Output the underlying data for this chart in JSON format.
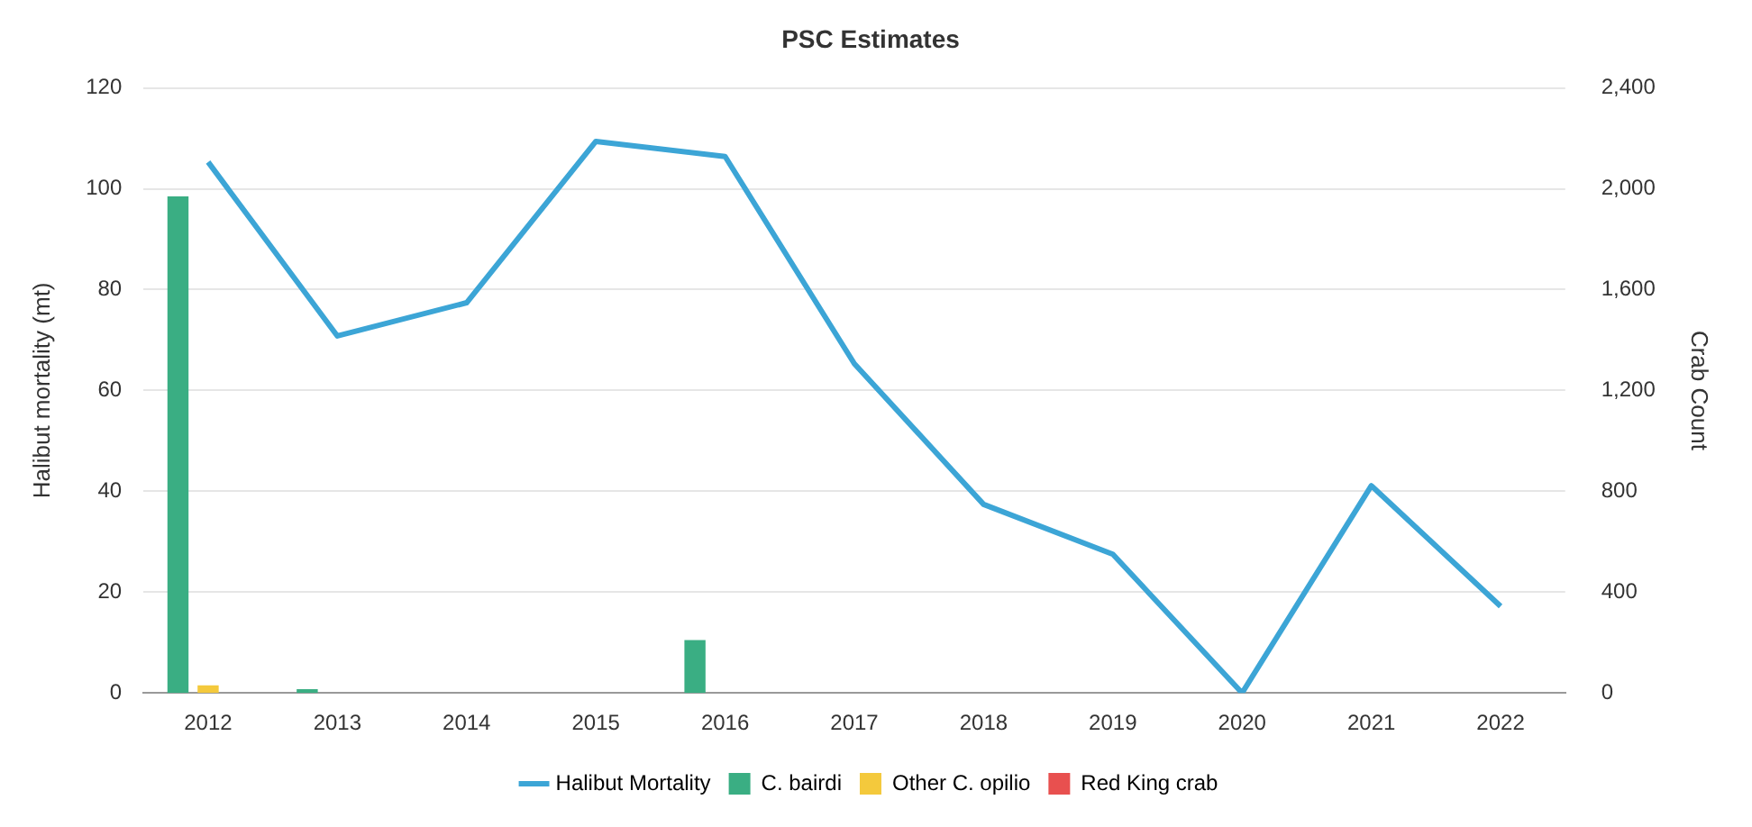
{
  "chart_data": {
    "type": "bar",
    "title": "PSC Estimates",
    "ylabel": "Halibut mortality (mt)",
    "y2label": "Crab Count",
    "categories": [
      "2012",
      "2013",
      "2014",
      "2015",
      "2016",
      "2017",
      "2018",
      "2019",
      "2020",
      "2021",
      "2022"
    ],
    "series": [
      {
        "name": "Halibut Mortality",
        "type": "line",
        "color": "#3ca5d6",
        "values": [
          105.3,
          70.8,
          77.4,
          109.4,
          106.4,
          65.3,
          37.4,
          27.5,
          0,
          41.1,
          17.2
        ]
      },
      {
        "name": "C. bairdi",
        "color": "#3aae83",
        "axis": "y2",
        "values": [
          1970,
          15,
          0,
          0,
          210,
          0,
          0,
          0,
          0,
          0,
          0
        ]
      },
      {
        "name": "Other C. opilio",
        "color": "#f4c93c",
        "axis": "y2",
        "values": [
          30,
          0,
          0,
          0,
          0,
          0,
          0,
          0,
          0,
          0,
          0
        ]
      },
      {
        "name": "Red King crab",
        "color": "#e8504f",
        "axis": "y2",
        "values": [
          0,
          0,
          0,
          0,
          0,
          0,
          0,
          0,
          0,
          0,
          0
        ]
      }
    ],
    "ylim": [
      0,
      120
    ],
    "yticks": [
      0,
      20,
      40,
      60,
      80,
      100,
      120
    ],
    "y2lim": [
      0,
      2400
    ],
    "y2ticks": [
      0,
      {
        "value": 400,
        "label": "400"
      },
      {
        "value": 800,
        "label": "800"
      },
      {
        "value": 1200,
        "label": "1,200"
      },
      {
        "value": 1600,
        "label": "1,600"
      },
      {
        "value": 2000,
        "label": "2,000"
      },
      {
        "value": 2400,
        "label": "2,400"
      }
    ],
    "grid": "y",
    "legend": "bottom",
    "marker": "none",
    "line_style": "solid"
  }
}
